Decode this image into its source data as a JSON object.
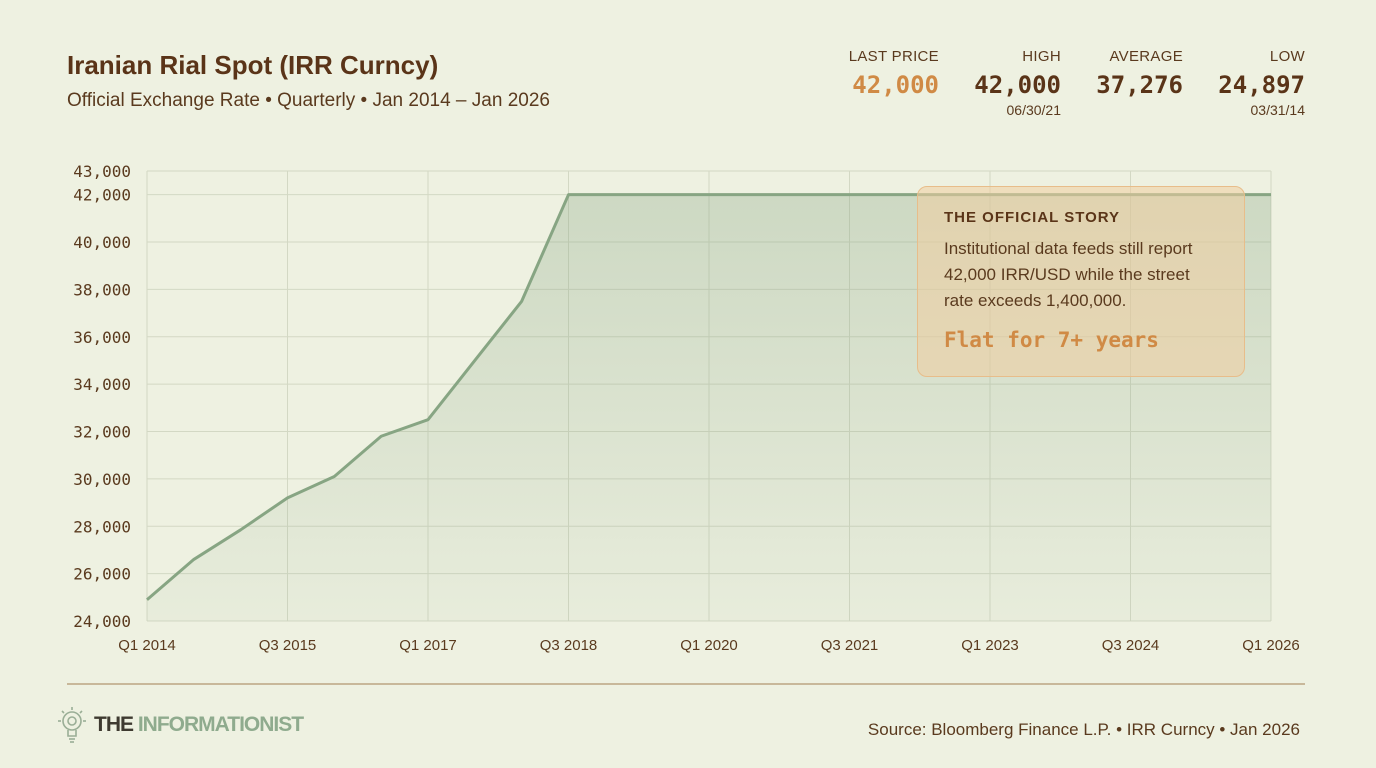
{
  "header": {
    "title": "Iranian Rial Spot (IRR Curncy)",
    "subtitle": "Official Exchange Rate • Quarterly • Jan 2014 – Jan 2026"
  },
  "stats": {
    "last": {
      "label": "LAST PRICE",
      "value": "42,000"
    },
    "high": {
      "label": "HIGH",
      "value": "42,000",
      "date": "06/30/21"
    },
    "average": {
      "label": "AVERAGE",
      "value": "37,276"
    },
    "low": {
      "label": "LOW",
      "value": "24,897",
      "date": "03/31/14"
    }
  },
  "callout": {
    "title": "THE OFFICIAL STORY",
    "body": "Institutional data feeds still report 42,000 IRR/USD while the street rate exceeds 1,400,000.",
    "highlight": "Flat for 7+ years"
  },
  "footer": {
    "logo_a": "THE",
    "logo_b": "INFORMATIONIST",
    "source": "Source: Bloomberg Finance L.P. • IRR Curncy • Jan 2026"
  },
  "colors": {
    "line": "#87a583",
    "fill": "#87a583",
    "accent": "#d08a45",
    "grid": "#d3d8c4",
    "background": "#eef1e1"
  },
  "chart_data": {
    "type": "area",
    "x": [
      2014.0,
      2014.5,
      2015.0,
      2015.5,
      2016.0,
      2016.5,
      2017.0,
      2017.5,
      2018.0,
      2018.5,
      2019.0,
      2020.0,
      2021.0,
      2022.0,
      2023.0,
      2024.0,
      2025.0,
      2026.0
    ],
    "y": [
      24897,
      26600,
      27850,
      29200,
      30100,
      31800,
      32500,
      35000,
      37500,
      42000,
      42000,
      42000,
      42000,
      42000,
      42000,
      42000,
      42000,
      42000
    ],
    "xlim": [
      2014.0,
      2026.0
    ],
    "ylim": [
      24000,
      43000
    ],
    "y_ticks": [
      24000,
      26000,
      28000,
      30000,
      32000,
      34000,
      36000,
      38000,
      40000,
      42000,
      43000
    ],
    "y_tick_labels": [
      "24,000",
      "26,000",
      "28,000",
      "30,000",
      "32,000",
      "34,000",
      "36,000",
      "38,000",
      "40,000",
      "42,000",
      "43,000"
    ],
    "x_ticks": [
      2014.0,
      2015.5,
      2017.0,
      2018.5,
      2020.0,
      2021.5,
      2023.0,
      2024.5,
      2026.0
    ],
    "x_tick_labels": [
      "Q1 2014",
      "Q3 2015",
      "Q1 2017",
      "Q3 2018",
      "Q1 2020",
      "Q3 2021",
      "Q1 2023",
      "Q3 2024",
      "Q1 2026"
    ],
    "grid": true
  }
}
